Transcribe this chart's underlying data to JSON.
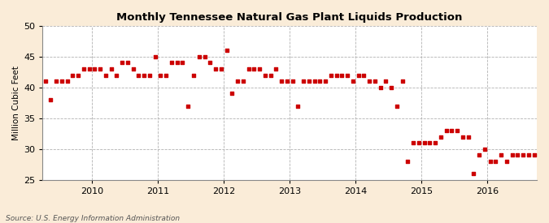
{
  "title": "Monthly Tennessee Natural Gas Plant Liquids Production",
  "ylabel": "Million Cubic Feet",
  "source": "Source: U.S. Energy Information Administration",
  "background_color": "#faecd8",
  "plot_background_color": "#ffffff",
  "marker_color": "#cc0000",
  "ylim": [
    25,
    50
  ],
  "yticks": [
    25,
    30,
    35,
    40,
    45,
    50
  ],
  "xlim_left": 2009.25,
  "xlim_right": 2016.75,
  "year_ticks": [
    2010,
    2011,
    2012,
    2013,
    2014,
    2015,
    2016
  ],
  "data": {
    "2009-04": 41,
    "2009-05": 38,
    "2009-06": 41,
    "2009-07": 41,
    "2009-08": 41,
    "2009-09": 42,
    "2009-10": 42,
    "2009-11": 43,
    "2009-12": 43,
    "2010-01": 43,
    "2010-02": 43,
    "2010-03": 42,
    "2010-04": 43,
    "2010-05": 42,
    "2010-06": 44,
    "2010-07": 44,
    "2010-08": 43,
    "2010-09": 42,
    "2010-10": 42,
    "2010-11": 42,
    "2010-12": 45,
    "2011-01": 42,
    "2011-02": 42,
    "2011-03": 44,
    "2011-04": 44,
    "2011-05": 44,
    "2011-06": 37,
    "2011-07": 42,
    "2011-08": 45,
    "2011-09": 45,
    "2011-10": 44,
    "2011-11": 43,
    "2011-12": 43,
    "2012-01": 46,
    "2012-02": 39,
    "2012-03": 41,
    "2012-04": 41,
    "2012-05": 43,
    "2012-06": 43,
    "2012-07": 43,
    "2012-08": 42,
    "2012-09": 42,
    "2012-10": 43,
    "2012-11": 41,
    "2012-12": 41,
    "2013-01": 41,
    "2013-02": 37,
    "2013-03": 41,
    "2013-04": 41,
    "2013-05": 41,
    "2013-06": 41,
    "2013-07": 41,
    "2013-08": 42,
    "2013-09": 42,
    "2013-10": 42,
    "2013-11": 42,
    "2013-12": 41,
    "2014-01": 42,
    "2014-02": 42,
    "2014-03": 41,
    "2014-04": 41,
    "2014-05": 40,
    "2014-06": 41,
    "2014-07": 40,
    "2014-08": 37,
    "2014-09": 41,
    "2014-10": 28,
    "2014-11": 31,
    "2014-12": 31,
    "2015-01": 31,
    "2015-02": 31,
    "2015-03": 31,
    "2015-04": 32,
    "2015-05": 33,
    "2015-06": 33,
    "2015-07": 33,
    "2015-08": 32,
    "2015-09": 32,
    "2015-10": 26,
    "2015-11": 29,
    "2015-12": 30,
    "2016-01": 28,
    "2016-02": 28,
    "2016-03": 29,
    "2016-04": 28,
    "2016-05": 29,
    "2016-06": 29,
    "2016-07": 29,
    "2016-08": 29,
    "2016-09": 29
  }
}
